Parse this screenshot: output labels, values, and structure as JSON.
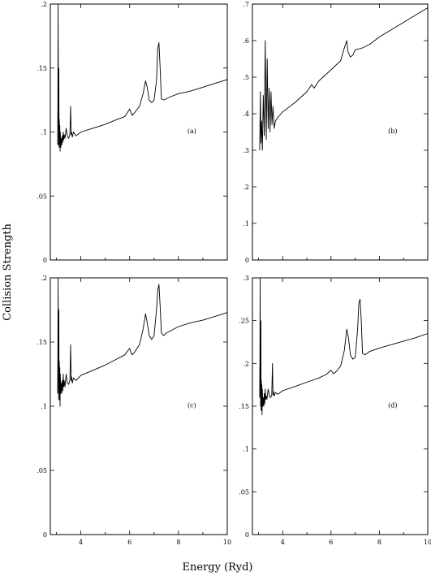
{
  "figure": {
    "ylabel": "Collision Strength",
    "xlabel": "Energy (Ryd)"
  },
  "chart_data": [
    {
      "type": "line",
      "panel_label": "(a)",
      "xlim": [
        2.75,
        10
      ],
      "ylim": [
        0,
        0.2
      ],
      "x_ticks": [
        4,
        6,
        8,
        10
      ],
      "x_tick_labels": [
        "4",
        "6",
        "8",
        "10"
      ],
      "y_ticks": [
        0,
        0.05,
        0.1,
        0.15,
        0.2
      ],
      "y_tick_labels": [
        "0",
        ".05",
        ".1",
        ".15",
        ".2"
      ],
      "show_x_tick_labels": false,
      "series": [
        {
          "x": [
            3.05,
            3.06,
            3.07,
            3.08,
            3.09,
            3.1,
            3.11,
            3.12,
            3.13,
            3.14,
            3.15,
            3.16,
            3.18,
            3.2,
            3.22,
            3.24,
            3.26,
            3.28,
            3.3,
            3.32,
            3.35,
            3.4,
            3.45,
            3.5,
            3.55,
            3.58,
            3.6,
            3.62,
            3.65,
            3.7,
            3.8,
            4.0,
            4.5,
            5.0,
            5.5,
            5.8,
            6.0,
            6.1,
            6.2,
            6.4,
            6.55,
            6.65,
            6.72,
            6.8,
            6.9,
            7.0,
            7.1,
            7.15,
            7.2,
            7.25,
            7.3,
            7.4,
            7.5,
            7.6,
            8.0,
            8.5,
            9.0,
            9.5,
            10.0
          ],
          "y": [
            0.09,
            0.12,
            0.2,
            0.13,
            0.09,
            0.15,
            0.088,
            0.11,
            0.09,
            0.105,
            0.085,
            0.1,
            0.088,
            0.095,
            0.09,
            0.097,
            0.092,
            0.1,
            0.094,
            0.098,
            0.095,
            0.103,
            0.097,
            0.095,
            0.098,
            0.12,
            0.098,
            0.1,
            0.096,
            0.1,
            0.097,
            0.1,
            0.103,
            0.106,
            0.11,
            0.112,
            0.118,
            0.113,
            0.115,
            0.12,
            0.13,
            0.14,
            0.135,
            0.125,
            0.123,
            0.125,
            0.14,
            0.165,
            0.17,
            0.15,
            0.126,
            0.125,
            0.126,
            0.127,
            0.13,
            0.132,
            0.135,
            0.138,
            0.141
          ]
        }
      ]
    },
    {
      "type": "line",
      "panel_label": "(b)",
      "xlim": [
        2.75,
        10
      ],
      "ylim": [
        0,
        0.7
      ],
      "x_ticks": [
        4,
        6,
        8,
        10
      ],
      "x_tick_labels": [
        "4",
        "6",
        "8",
        "10"
      ],
      "y_ticks": [
        0,
        0.1,
        0.2,
        0.3,
        0.4,
        0.5,
        0.6,
        0.7
      ],
      "y_tick_labels": [
        "0",
        ".1",
        ".2",
        ".3",
        ".4",
        ".5",
        ".6",
        ".7"
      ],
      "show_x_tick_labels": false,
      "series": [
        {
          "x": [
            3.05,
            3.08,
            3.1,
            3.13,
            3.16,
            3.2,
            3.24,
            3.28,
            3.32,
            3.36,
            3.4,
            3.44,
            3.48,
            3.52,
            3.56,
            3.6,
            3.65,
            3.7,
            3.8,
            4.0,
            4.5,
            5.0,
            5.2,
            5.3,
            5.5,
            6.0,
            6.4,
            6.55,
            6.65,
            6.7,
            6.8,
            6.9,
            7.0,
            7.3,
            7.6,
            8.0,
            8.5,
            9.0,
            9.5,
            10.0
          ],
          "y": [
            0.3,
            0.46,
            0.32,
            0.38,
            0.3,
            0.45,
            0.34,
            0.6,
            0.33,
            0.55,
            0.36,
            0.47,
            0.35,
            0.46,
            0.37,
            0.42,
            0.36,
            0.38,
            0.39,
            0.405,
            0.43,
            0.46,
            0.48,
            0.47,
            0.49,
            0.52,
            0.545,
            0.58,
            0.6,
            0.57,
            0.555,
            0.56,
            0.575,
            0.58,
            0.59,
            0.61,
            0.63,
            0.65,
            0.67,
            0.69
          ]
        }
      ]
    },
    {
      "type": "line",
      "panel_label": "(c)",
      "xlim": [
        2.75,
        10
      ],
      "ylim": [
        0,
        0.2
      ],
      "x_ticks": [
        4,
        6,
        8,
        10
      ],
      "x_tick_labels": [
        "4",
        "6",
        "8",
        "10"
      ],
      "y_ticks": [
        0,
        0.05,
        0.1,
        0.15,
        0.2
      ],
      "y_tick_labels": [
        "0",
        ".05",
        ".1",
        ".15",
        ".2"
      ],
      "show_x_tick_labels": false,
      "series": [
        {
          "x": [
            3.05,
            3.06,
            3.07,
            3.08,
            3.09,
            3.1,
            3.11,
            3.12,
            3.13,
            3.14,
            3.15,
            3.16,
            3.18,
            3.2,
            3.22,
            3.24,
            3.26,
            3.28,
            3.3,
            3.32,
            3.35,
            3.4,
            3.45,
            3.5,
            3.55,
            3.58,
            3.6,
            3.62,
            3.65,
            3.7,
            3.8,
            4.0,
            4.5,
            5.0,
            5.5,
            5.8,
            6.0,
            6.1,
            6.2,
            6.4,
            6.55,
            6.65,
            6.72,
            6.8,
            6.9,
            7.0,
            7.1,
            7.15,
            7.2,
            7.25,
            7.3,
            7.4,
            7.5,
            7.6,
            8.0,
            8.5,
            9.0,
            9.5,
            10.0
          ],
          "y": [
            0.11,
            0.14,
            0.2,
            0.13,
            0.105,
            0.175,
            0.11,
            0.135,
            0.105,
            0.13,
            0.1,
            0.125,
            0.11,
            0.118,
            0.11,
            0.12,
            0.112,
            0.125,
            0.115,
            0.12,
            0.115,
            0.125,
            0.118,
            0.117,
            0.12,
            0.148,
            0.12,
            0.123,
            0.118,
            0.122,
            0.12,
            0.124,
            0.128,
            0.132,
            0.137,
            0.14,
            0.145,
            0.14,
            0.142,
            0.148,
            0.16,
            0.172,
            0.165,
            0.155,
            0.152,
            0.155,
            0.175,
            0.19,
            0.195,
            0.178,
            0.157,
            0.155,
            0.157,
            0.158,
            0.162,
            0.165,
            0.167,
            0.17,
            0.173
          ]
        }
      ]
    },
    {
      "type": "line",
      "panel_label": "(d)",
      "xlim": [
        2.75,
        10
      ],
      "ylim": [
        0,
        0.3
      ],
      "x_ticks": [
        4,
        6,
        8,
        10
      ],
      "x_tick_labels": [
        "4",
        "6",
        "8",
        "10"
      ],
      "y_ticks": [
        0,
        0.05,
        0.1,
        0.15,
        0.2,
        0.25,
        0.3
      ],
      "y_tick_labels": [
        "0",
        ".05",
        ".1",
        ".15",
        ".2",
        ".25",
        ".3"
      ],
      "show_x_tick_labels": true,
      "series": [
        {
          "x": [
            3.05,
            3.06,
            3.07,
            3.08,
            3.09,
            3.1,
            3.11,
            3.12,
            3.13,
            3.14,
            3.15,
            3.16,
            3.18,
            3.2,
            3.22,
            3.24,
            3.26,
            3.28,
            3.3,
            3.32,
            3.35,
            3.4,
            3.45,
            3.5,
            3.55,
            3.58,
            3.6,
            3.62,
            3.65,
            3.7,
            3.8,
            4.0,
            4.5,
            5.0,
            5.5,
            5.8,
            6.0,
            6.1,
            6.2,
            6.4,
            6.55,
            6.65,
            6.72,
            6.8,
            6.9,
            7.0,
            7.1,
            7.15,
            7.2,
            7.25,
            7.3,
            7.4,
            7.5,
            7.6,
            8.0,
            8.5,
            9.0,
            9.5,
            10.0
          ],
          "y": [
            0.16,
            0.2,
            0.3,
            0.19,
            0.15,
            0.25,
            0.145,
            0.18,
            0.145,
            0.175,
            0.14,
            0.17,
            0.15,
            0.16,
            0.15,
            0.165,
            0.153,
            0.17,
            0.158,
            0.162,
            0.158,
            0.17,
            0.162,
            0.16,
            0.163,
            0.2,
            0.163,
            0.167,
            0.162,
            0.166,
            0.164,
            0.168,
            0.173,
            0.178,
            0.183,
            0.187,
            0.192,
            0.188,
            0.19,
            0.197,
            0.215,
            0.24,
            0.23,
            0.21,
            0.205,
            0.207,
            0.24,
            0.27,
            0.275,
            0.25,
            0.212,
            0.21,
            0.212,
            0.214,
            0.218,
            0.222,
            0.226,
            0.23,
            0.235
          ]
        }
      ]
    }
  ]
}
